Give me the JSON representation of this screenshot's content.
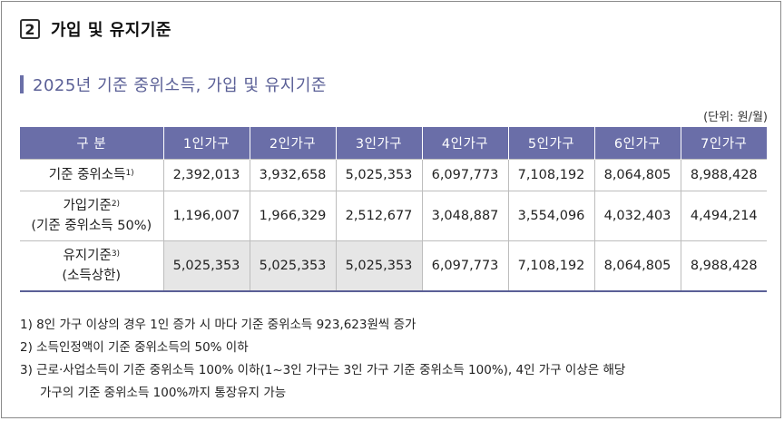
{
  "section": {
    "number": "2",
    "title": "가입 및 유지기준"
  },
  "subsection": {
    "title": "2025년 기준 중위소득, 가입 및 유지기준"
  },
  "unit_label": "(단위: 원/월)",
  "table": {
    "corner": "구 분",
    "columns": [
      "1인가구",
      "2인가구",
      "3인가구",
      "4인가구",
      "5인가구",
      "6인가구",
      "7인가구"
    ],
    "rows": [
      {
        "label_line1": "기준 중위소득",
        "label_sup": "1)",
        "label_line2": "",
        "values": [
          "2,392,013",
          "3,932,658",
          "5,025,353",
          "6,097,773",
          "7,108,192",
          "8,064,805",
          "8,988,428"
        ]
      },
      {
        "label_line1": "가입기준",
        "label_sup": "2)",
        "label_line2": "(기준 중위소득 50%)",
        "values": [
          "1,196,007",
          "1,966,329",
          "2,512,677",
          "3,048,887",
          "3,554,096",
          "4,032,403",
          "4,494,214"
        ]
      },
      {
        "label_line1": "유지기준",
        "label_sup": "3)",
        "label_line2": "(소득상한)",
        "values": [
          "5,025,353",
          "5,025,353",
          "5,025,353",
          "6,097,773",
          "7,108,192",
          "8,064,805",
          "8,988,428"
        ]
      }
    ]
  },
  "notes": [
    "1) 8인 가구 이상의 경우 1인 증가 시 마다 기준 중위소득 923,623원씩 증가",
    "2) 소득인정액이 기준 중위소득의 50% 이하",
    "3) 근로·사업소득이 기준 중위소득 100% 이하(1~3인 가구는 3인 가구 기준 중위소득 100%), 4인 가구 이상은 해당",
    "가구의 기준 중위소득 100%까지 통장유지 가능"
  ],
  "colors": {
    "header_bg": "#6a6ea8",
    "subtitle": "#5a5f96",
    "shaded_cell": "#e6e6e6"
  }
}
